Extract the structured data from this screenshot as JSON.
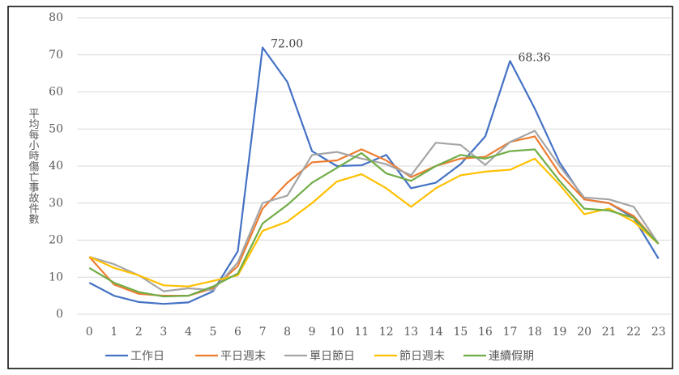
{
  "chart_data": {
    "type": "line",
    "y_label": "平均每小時傷亡事故件數",
    "categories": [
      0,
      1,
      2,
      3,
      4,
      5,
      6,
      7,
      8,
      9,
      10,
      11,
      12,
      13,
      14,
      15,
      16,
      17,
      18,
      19,
      20,
      21,
      22,
      23
    ],
    "series": [
      {
        "name": "工作日",
        "color": "#4472c4",
        "values": [
          8.5,
          5,
          3.3,
          2.8,
          3.2,
          6.2,
          17,
          72,
          62.7,
          44,
          40,
          40.2,
          43,
          34,
          35.5,
          40.5,
          48,
          68.36,
          55.5,
          41,
          31,
          30,
          26,
          15
        ],
        "value_labels": [
          null,
          null,
          null,
          null,
          null,
          null,
          null,
          "72.00",
          null,
          null,
          null,
          null,
          null,
          null,
          null,
          null,
          null,
          "68.36",
          null,
          null,
          null,
          null,
          null,
          null
        ]
      },
      {
        "name": "平日週末",
        "color": "#ed7d31",
        "values": [
          15.5,
          8,
          5.5,
          5,
          5,
          7,
          13,
          28.5,
          35.5,
          41,
          41.5,
          44.5,
          41.5,
          37,
          40,
          42,
          42.5,
          46.5,
          48,
          38,
          31,
          30,
          26.5,
          19
        ]
      },
      {
        "name": "單日節日",
        "color": "#a5a5a5",
        "values": [
          15.5,
          13.5,
          10.5,
          6.2,
          7,
          6.5,
          14,
          30,
          32,
          43,
          43.8,
          42,
          40.5,
          37.5,
          46.3,
          45.7,
          40.3,
          46.5,
          49.5,
          40,
          31.5,
          31,
          29,
          19
        ]
      },
      {
        "name": "節日週末",
        "color": "#ffc000",
        "values": [
          15.5,
          12.5,
          10.5,
          7.8,
          7.5,
          9,
          10.5,
          22.5,
          25,
          30,
          35.8,
          37.8,
          34,
          29,
          34,
          37.5,
          38.5,
          39,
          42,
          35,
          27,
          28.5,
          25,
          19
        ]
      },
      {
        "name": "連續假期",
        "color": "#70ad47",
        "values": [
          12.5,
          8.5,
          6,
          4.8,
          5,
          7.5,
          11,
          24.5,
          29.5,
          35.5,
          39.5,
          43.5,
          38,
          36,
          40,
          43,
          42,
          44,
          44.5,
          36,
          28.5,
          28,
          26,
          19
        ]
      }
    ],
    "ylim": [
      0,
      80
    ],
    "yticks": [
      0,
      10,
      20,
      30,
      40,
      50,
      60,
      70,
      80
    ],
    "grid": true,
    "legend": "bottom"
  }
}
